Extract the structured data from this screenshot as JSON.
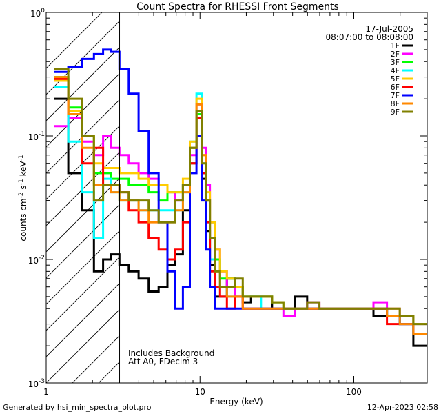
{
  "chart_data": {
    "type": "line",
    "title": "Count Spectra for RHESSI Front Segments",
    "xlabel": "Energy (keV)",
    "ylabel": "counts cm",
    "ylabel_sup1": "-2",
    "ylabel_mid": " s",
    "ylabel_sup2": "-1",
    "ylabel_end": " keV",
    "ylabel_sup3": "-1",
    "x_scale": "log",
    "y_scale": "log",
    "xlim": [
      1,
      300
    ],
    "ylim": [
      0.001,
      1
    ],
    "x_tick_labels": [
      "1",
      "10",
      "100"
    ],
    "y_tick_base": "10",
    "y_tick_exponents": [
      "0",
      "-1",
      "-2",
      "-3"
    ],
    "date": "17-Jul-2005",
    "time_range": "08:07:00 to 08:08:00",
    "attenuator_cutoff_kev": 3,
    "annotations": [
      "Includes Background",
      "Att A0, FDecim 3"
    ],
    "series": [
      {
        "name": "1F",
        "color": "#000000",
        "x": [
          1.25,
          1.55,
          1.9,
          2.2,
          2.5,
          2.8,
          3.2,
          3.7,
          4.3,
          5.0,
          5.8,
          6.5,
          7.3,
          8.2,
          9.0,
          10.0,
          10.6,
          11.2,
          12.0,
          13,
          14,
          16,
          18,
          20,
          23,
          27,
          32,
          38,
          45,
          55,
          65,
          80,
          100,
          120,
          150,
          180,
          220,
          270
        ],
        "y": [
          0.2,
          0.05,
          0.025,
          0.008,
          0.01,
          0.011,
          0.009,
          0.008,
          0.007,
          0.0055,
          0.006,
          0.009,
          0.011,
          0.025,
          0.06,
          0.14,
          0.045,
          0.017,
          0.009,
          0.005,
          0.005,
          0.007,
          0.006,
          0.0045,
          0.005,
          0.005,
          0.004,
          0.004,
          0.005,
          0.004,
          0.004,
          0.004,
          0.004,
          0.004,
          0.0035,
          0.0035,
          0.003,
          0.002
        ]
      },
      {
        "name": "2F",
        "color": "#ff00ff",
        "x": [
          1.25,
          1.55,
          1.9,
          2.2,
          2.5,
          2.8,
          3.2,
          3.7,
          4.3,
          5.0,
          5.8,
          6.5,
          7.3,
          8.2,
          9.0,
          10.0,
          10.6,
          11.2,
          12.0,
          13,
          14,
          16,
          18,
          20,
          23,
          27,
          32,
          38,
          45,
          55,
          65,
          80,
          100,
          120,
          150,
          180,
          220,
          270
        ],
        "y": [
          0.12,
          0.14,
          0.09,
          0.07,
          0.1,
          0.08,
          0.07,
          0.06,
          0.05,
          0.045,
          0.04,
          0.035,
          0.03,
          0.04,
          0.07,
          0.18,
          0.08,
          0.04,
          0.02,
          0.012,
          0.008,
          0.006,
          0.005,
          0.004,
          0.004,
          0.004,
          0.004,
          0.0035,
          0.004,
          0.0045,
          0.004,
          0.004,
          0.004,
          0.004,
          0.0045,
          0.004,
          0.0035,
          0.003
        ]
      },
      {
        "name": "3F",
        "color": "#00ff00",
        "x": [
          1.25,
          1.55,
          1.9,
          2.2,
          2.5,
          2.8,
          3.2,
          3.7,
          4.3,
          5.0,
          5.8,
          6.5,
          7.3,
          8.2,
          9.0,
          10.0,
          10.6,
          11.2,
          12.0,
          13,
          14,
          16,
          18,
          20,
          23,
          27,
          32,
          38,
          45,
          55,
          65,
          80,
          100,
          120,
          150,
          180,
          220,
          270
        ],
        "y": [
          0.3,
          0.17,
          0.1,
          0.05,
          0.05,
          0.045,
          0.045,
          0.04,
          0.04,
          0.035,
          0.03,
          0.035,
          0.035,
          0.04,
          0.08,
          0.15,
          0.05,
          0.03,
          0.02,
          0.01,
          0.007,
          0.007,
          0.006,
          0.005,
          0.005,
          0.005,
          0.0045,
          0.004,
          0.004,
          0.004,
          0.004,
          0.004,
          0.004,
          0.004,
          0.004,
          0.0035,
          0.0035,
          0.0025
        ]
      },
      {
        "name": "4F",
        "color": "#00ffff",
        "x": [
          1.25,
          1.55,
          1.9,
          2.2,
          2.5,
          2.8,
          3.2,
          3.7,
          4.3,
          5.0,
          5.8,
          6.5,
          7.3,
          8.2,
          9.0,
          10.0,
          10.6,
          11.2,
          12.0,
          13,
          14,
          16,
          18,
          20,
          23,
          27,
          32,
          38,
          45,
          55,
          65,
          80,
          100,
          120,
          150,
          180,
          220,
          270
        ],
        "y": [
          0.25,
          0.09,
          0.035,
          0.015,
          0.045,
          0.035,
          0.03,
          0.03,
          0.025,
          0.025,
          0.025,
          0.025,
          0.025,
          0.035,
          0.09,
          0.22,
          0.06,
          0.02,
          0.01,
          0.006,
          0.006,
          0.005,
          0.005,
          0.005,
          0.005,
          0.004,
          0.004,
          0.004,
          0.004,
          0.004,
          0.004,
          0.004,
          0.004,
          0.004,
          0.004,
          0.0035,
          0.003,
          0.003
        ]
      },
      {
        "name": "5F",
        "color": "#ffcc00",
        "x": [
          1.25,
          1.55,
          1.9,
          2.2,
          2.5,
          2.8,
          3.2,
          3.7,
          4.3,
          5.0,
          5.8,
          6.5,
          7.3,
          8.2,
          9.0,
          10.0,
          10.6,
          11.2,
          12.0,
          13,
          14,
          16,
          18,
          20,
          23,
          27,
          32,
          38,
          45,
          55,
          65,
          80,
          100,
          120,
          150,
          180,
          220,
          270
        ],
        "y": [
          0.28,
          0.16,
          0.1,
          0.06,
          0.055,
          0.055,
          0.05,
          0.05,
          0.045,
          0.04,
          0.04,
          0.035,
          0.035,
          0.045,
          0.09,
          0.2,
          0.07,
          0.035,
          0.02,
          0.012,
          0.008,
          0.007,
          0.006,
          0.005,
          0.005,
          0.005,
          0.0045,
          0.004,
          0.004,
          0.004,
          0.004,
          0.004,
          0.004,
          0.004,
          0.004,
          0.004,
          0.0035,
          0.003
        ]
      },
      {
        "name": "6F",
        "color": "#ff0000",
        "x": [
          1.25,
          1.55,
          1.9,
          2.2,
          2.5,
          2.8,
          3.2,
          3.7,
          4.3,
          5.0,
          5.8,
          6.5,
          7.3,
          8.2,
          9.0,
          10.0,
          10.6,
          11.2,
          12.0,
          13,
          14,
          16,
          18,
          20,
          23,
          27,
          32,
          38,
          45,
          55,
          65,
          80,
          100,
          120,
          150,
          180,
          220,
          270
        ],
        "y": [
          0.29,
          0.15,
          0.06,
          0.08,
          0.04,
          0.04,
          0.035,
          0.025,
          0.02,
          0.015,
          0.012,
          0.01,
          0.012,
          0.02,
          0.06,
          0.14,
          0.05,
          0.02,
          0.008,
          0.006,
          0.005,
          0.004,
          0.005,
          0.004,
          0.004,
          0.004,
          0.004,
          0.004,
          0.004,
          0.004,
          0.004,
          0.004,
          0.004,
          0.004,
          0.004,
          0.003,
          0.003,
          0.0025
        ]
      },
      {
        "name": "7F",
        "color": "#0000ff",
        "x": [
          1.25,
          1.55,
          1.9,
          2.2,
          2.5,
          2.8,
          3.2,
          3.7,
          4.3,
          5.0,
          5.8,
          6.5,
          7.3,
          8.2,
          9.0,
          10.0,
          10.6,
          11.2,
          12.0,
          13,
          14,
          16,
          18,
          20,
          23,
          27,
          32,
          38,
          45,
          55,
          65,
          80,
          100,
          120,
          150,
          180,
          220,
          270
        ],
        "y": [
          0.33,
          0.36,
          0.42,
          0.46,
          0.5,
          0.48,
          0.35,
          0.22,
          0.11,
          0.05,
          0.02,
          0.008,
          0.004,
          0.006,
          0.05,
          0.1,
          0.03,
          0.012,
          0.006,
          0.004,
          0.004,
          0.004,
          0.004,
          0.004,
          0.004,
          0.004,
          0.004,
          0.004,
          0.004,
          0.004,
          0.004,
          0.004,
          0.004,
          0.004,
          0.004,
          0.0035,
          0.003,
          0.0025
        ]
      },
      {
        "name": "8F",
        "color": "#ff8800",
        "x": [
          1.25,
          1.55,
          1.9,
          2.2,
          2.5,
          2.8,
          3.2,
          3.7,
          4.3,
          5.0,
          5.8,
          6.5,
          7.3,
          8.2,
          9.0,
          10.0,
          10.6,
          11.2,
          12.0,
          13,
          14,
          16,
          18,
          20,
          23,
          27,
          32,
          38,
          45,
          55,
          65,
          80,
          100,
          120,
          150,
          180,
          220,
          270
        ],
        "y": [
          0.3,
          0.15,
          0.08,
          0.04,
          0.04,
          0.035,
          0.03,
          0.03,
          0.025,
          0.02,
          0.02,
          0.02,
          0.025,
          0.035,
          0.08,
          0.18,
          0.07,
          0.03,
          0.015,
          0.008,
          0.006,
          0.005,
          0.005,
          0.004,
          0.004,
          0.004,
          0.004,
          0.004,
          0.004,
          0.004,
          0.004,
          0.004,
          0.004,
          0.004,
          0.004,
          0.0035,
          0.003,
          0.0025
        ]
      },
      {
        "name": "9F",
        "color": "#808000",
        "x": [
          1.25,
          1.55,
          1.9,
          2.2,
          2.5,
          2.8,
          3.2,
          3.7,
          4.3,
          5.0,
          5.8,
          6.5,
          7.3,
          8.2,
          9.0,
          10.0,
          10.6,
          11.2,
          12.0,
          13,
          14,
          16,
          18,
          20,
          23,
          27,
          32,
          38,
          45,
          55,
          65,
          80,
          100,
          120,
          150,
          180,
          220,
          270
        ],
        "y": [
          0.35,
          0.2,
          0.1,
          0.03,
          0.04,
          0.04,
          0.035,
          0.03,
          0.03,
          0.025,
          0.02,
          0.02,
          0.03,
          0.04,
          0.08,
          0.16,
          0.06,
          0.03,
          0.015,
          0.008,
          0.006,
          0.006,
          0.007,
          0.005,
          0.005,
          0.005,
          0.0045,
          0.004,
          0.004,
          0.0045,
          0.004,
          0.004,
          0.004,
          0.004,
          0.004,
          0.004,
          0.0035,
          0.003
        ]
      }
    ]
  },
  "footer": {
    "generator": "Generated by hsi_min_spectra_plot.pro",
    "timestamp": "12-Apr-2023 02:58"
  }
}
